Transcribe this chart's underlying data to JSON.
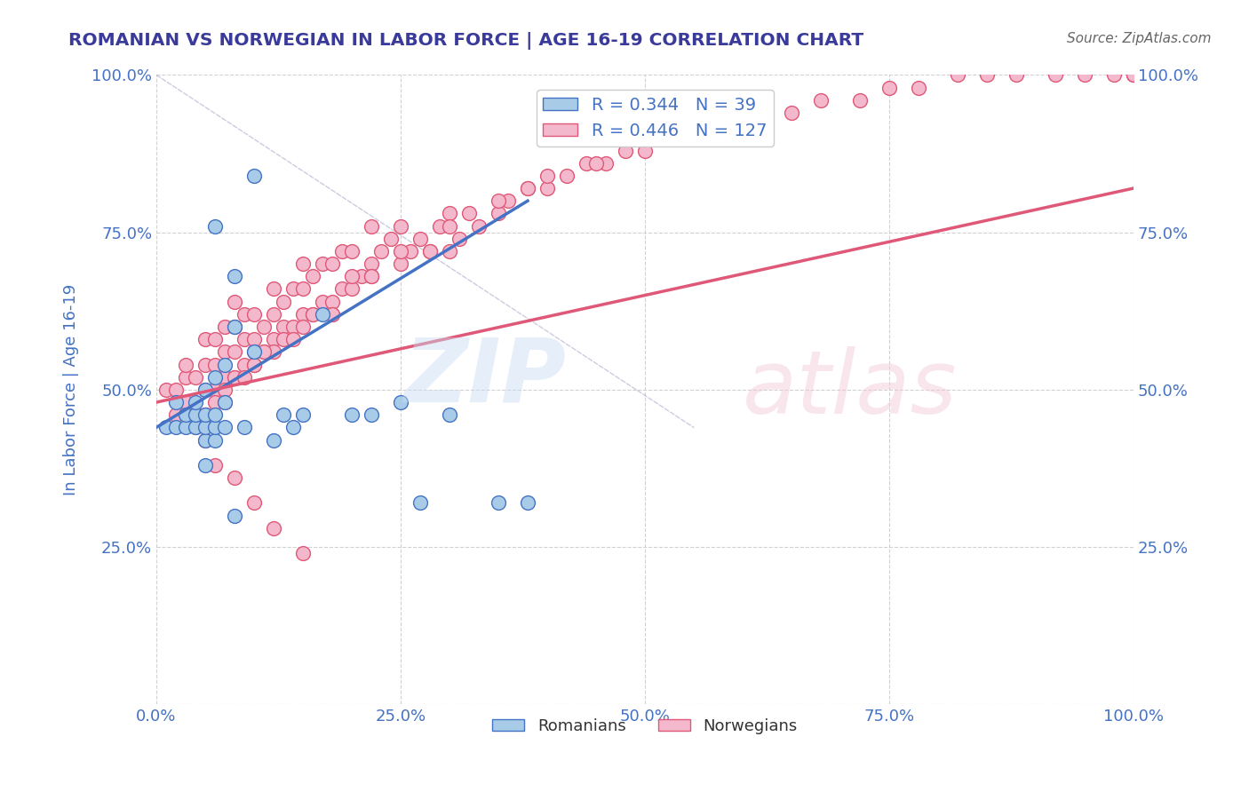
{
  "title": "ROMANIAN VS NORWEGIAN IN LABOR FORCE | AGE 16-19 CORRELATION CHART",
  "source": "Source: ZipAtlas.com",
  "ylabel": "In Labor Force | Age 16-19",
  "xlim": [
    0.0,
    1.0
  ],
  "ylim": [
    0.0,
    1.0
  ],
  "xticks": [
    0.0,
    0.25,
    0.5,
    0.75,
    1.0
  ],
  "yticks": [
    0.0,
    0.25,
    0.5,
    0.75,
    1.0
  ],
  "xticklabels": [
    "0.0%",
    "25.0%",
    "50.0%",
    "75.0%",
    "100.0%"
  ],
  "yticklabels": [
    "",
    "25.0%",
    "50.0%",
    "75.0%",
    "100.0%"
  ],
  "romanian_color": "#a8cce8",
  "norwegian_color": "#f4b8cc",
  "romanian_line_color": "#4472c4",
  "norwegian_line_color": "#e05878",
  "R_romanian": 0.344,
  "N_romanian": 39,
  "R_norwegian": 0.446,
  "N_norwegian": 127,
  "title_color": "#3a3a9b",
  "axis_color": "#4472c4",
  "background_color": "#ffffff",
  "romanian_x": [
    0.01,
    0.02,
    0.02,
    0.03,
    0.03,
    0.04,
    0.04,
    0.04,
    0.05,
    0.05,
    0.05,
    0.05,
    0.05,
    0.06,
    0.06,
    0.06,
    0.06,
    0.07,
    0.07,
    0.07,
    0.08,
    0.08,
    0.09,
    0.1,
    0.12,
    0.13,
    0.14,
    0.15,
    0.17,
    0.2,
    0.22,
    0.25,
    0.27,
    0.3,
    0.1,
    0.08,
    0.06,
    0.35,
    0.38
  ],
  "romanian_y": [
    0.44,
    0.44,
    0.48,
    0.44,
    0.46,
    0.44,
    0.46,
    0.48,
    0.38,
    0.42,
    0.44,
    0.46,
    0.5,
    0.42,
    0.44,
    0.46,
    0.52,
    0.44,
    0.48,
    0.54,
    0.3,
    0.6,
    0.44,
    0.56,
    0.42,
    0.46,
    0.44,
    0.46,
    0.62,
    0.46,
    0.46,
    0.48,
    0.32,
    0.46,
    0.84,
    0.68,
    0.76,
    0.32,
    0.32
  ],
  "norwegian_x": [
    0.01,
    0.02,
    0.02,
    0.03,
    0.03,
    0.03,
    0.04,
    0.04,
    0.05,
    0.05,
    0.05,
    0.05,
    0.06,
    0.06,
    0.06,
    0.07,
    0.07,
    0.07,
    0.08,
    0.08,
    0.08,
    0.08,
    0.09,
    0.09,
    0.09,
    0.1,
    0.1,
    0.1,
    0.11,
    0.11,
    0.12,
    0.12,
    0.12,
    0.13,
    0.13,
    0.14,
    0.14,
    0.15,
    0.15,
    0.15,
    0.16,
    0.16,
    0.17,
    0.17,
    0.18,
    0.18,
    0.19,
    0.19,
    0.2,
    0.2,
    0.21,
    0.22,
    0.22,
    0.23,
    0.24,
    0.25,
    0.25,
    0.26,
    0.27,
    0.28,
    0.29,
    0.3,
    0.3,
    0.31,
    0.32,
    0.33,
    0.35,
    0.36,
    0.38,
    0.4,
    0.42,
    0.44,
    0.46,
    0.48,
    0.5,
    0.52,
    0.55,
    0.58,
    0.62,
    0.65,
    0.68,
    0.72,
    0.75,
    0.78,
    0.82,
    0.85,
    0.88,
    0.92,
    0.95,
    0.98,
    1.0,
    1.0,
    1.0,
    0.1,
    0.12,
    0.15,
    0.18,
    0.22,
    0.08,
    0.06,
    0.04,
    0.05,
    0.07,
    0.09,
    0.11,
    0.13,
    0.16,
    0.2,
    0.25,
    0.3,
    0.35,
    0.4,
    0.45,
    0.5,
    0.38,
    0.28,
    0.22,
    0.18,
    0.14,
    0.1,
    0.07,
    0.05,
    0.06,
    0.08,
    0.1,
    0.12,
    0.15
  ],
  "norwegian_y": [
    0.5,
    0.46,
    0.5,
    0.48,
    0.52,
    0.54,
    0.46,
    0.52,
    0.46,
    0.5,
    0.54,
    0.58,
    0.5,
    0.54,
    0.58,
    0.52,
    0.56,
    0.6,
    0.52,
    0.56,
    0.6,
    0.64,
    0.54,
    0.58,
    0.62,
    0.54,
    0.58,
    0.62,
    0.56,
    0.6,
    0.58,
    0.62,
    0.66,
    0.6,
    0.64,
    0.6,
    0.66,
    0.62,
    0.66,
    0.7,
    0.62,
    0.68,
    0.64,
    0.7,
    0.64,
    0.7,
    0.66,
    0.72,
    0.66,
    0.72,
    0.68,
    0.7,
    0.76,
    0.72,
    0.74,
    0.7,
    0.76,
    0.72,
    0.74,
    0.72,
    0.76,
    0.72,
    0.78,
    0.74,
    0.78,
    0.76,
    0.78,
    0.8,
    0.82,
    0.82,
    0.84,
    0.86,
    0.86,
    0.88,
    0.88,
    0.9,
    0.9,
    0.92,
    0.94,
    0.94,
    0.96,
    0.96,
    0.98,
    0.98,
    1.0,
    1.0,
    1.0,
    1.0,
    1.0,
    1.0,
    1.0,
    1.0,
    1.0,
    0.56,
    0.56,
    0.6,
    0.62,
    0.68,
    0.52,
    0.48,
    0.44,
    0.46,
    0.5,
    0.52,
    0.56,
    0.58,
    0.62,
    0.68,
    0.72,
    0.76,
    0.8,
    0.84,
    0.86,
    0.9,
    0.82,
    0.72,
    0.68,
    0.62,
    0.58,
    0.54,
    0.48,
    0.42,
    0.38,
    0.36,
    0.32,
    0.28,
    0.24
  ],
  "rom_trend_x0": 0.0,
  "rom_trend_y0": 0.44,
  "rom_trend_x1": 0.38,
  "rom_trend_y1": 0.8,
  "nor_trend_x0": 0.0,
  "nor_trend_y0": 0.48,
  "nor_trend_x1": 1.0,
  "nor_trend_y1": 0.82
}
